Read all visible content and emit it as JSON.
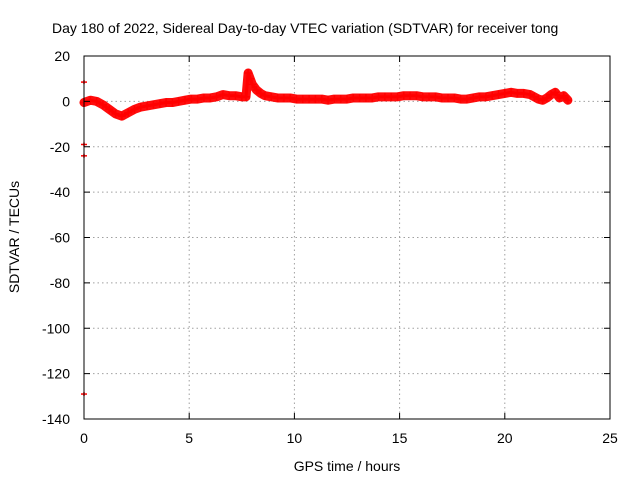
{
  "chart_data": {
    "type": "scatter",
    "title": "Day 180 of 2022, Sidereal Day-to-day VTEC variation (SDTVAR) for receiver tong",
    "xlabel": "GPS time / hours",
    "ylabel": "SDTVAR / TECUs",
    "xlim": [
      0,
      25
    ],
    "ylim": [
      -140,
      20
    ],
    "xticks": [
      0,
      5,
      10,
      15,
      20,
      25
    ],
    "yticks": [
      20,
      0,
      -20,
      -40,
      -60,
      -80,
      -100,
      -120,
      -140
    ],
    "grid": true,
    "series_color": "#ff0000",
    "series": [
      {
        "name": "SDTVAR",
        "x": [
          0.0,
          0.3,
          0.6,
          0.9,
          1.2,
          1.5,
          1.8,
          2.1,
          2.4,
          2.7,
          3.0,
          3.3,
          3.6,
          3.9,
          4.2,
          4.5,
          4.8,
          5.1,
          5.4,
          5.7,
          6.0,
          6.3,
          6.6,
          6.9,
          7.2,
          7.5,
          7.7,
          7.8,
          7.9,
          8.0,
          8.2,
          8.4,
          8.6,
          8.9,
          9.2,
          9.5,
          9.8,
          10.1,
          10.4,
          10.7,
          11.0,
          11.3,
          11.6,
          11.9,
          12.2,
          12.5,
          12.8,
          13.1,
          13.4,
          13.7,
          14.0,
          14.3,
          14.6,
          14.9,
          15.2,
          15.5,
          15.8,
          16.1,
          16.4,
          16.7,
          17.0,
          17.3,
          17.6,
          17.9,
          18.2,
          18.5,
          18.8,
          19.1,
          19.4,
          19.7,
          20.0,
          20.3,
          20.6,
          20.9,
          21.2,
          21.4,
          21.6,
          21.8,
          22.0,
          22.2,
          22.4,
          22.6,
          22.8,
          23.0
        ],
        "y": [
          -0.5,
          0.5,
          0.0,
          -1.5,
          -3.5,
          -5.5,
          -6.5,
          -5.0,
          -3.5,
          -2.5,
          -2.0,
          -1.5,
          -1.0,
          -0.5,
          -0.5,
          0.0,
          0.5,
          1.0,
          1.0,
          1.5,
          1.5,
          2.0,
          3.0,
          2.5,
          2.5,
          2.0,
          2.0,
          12.5,
          10.0,
          7.5,
          5.0,
          3.5,
          2.5,
          2.0,
          1.5,
          1.5,
          1.5,
          1.0,
          1.0,
          1.0,
          1.0,
          1.0,
          0.5,
          1.0,
          1.0,
          1.0,
          1.5,
          1.5,
          1.5,
          1.5,
          2.0,
          2.0,
          2.0,
          2.0,
          2.5,
          2.5,
          2.5,
          2.0,
          2.0,
          2.0,
          1.5,
          1.5,
          1.5,
          1.0,
          1.0,
          1.5,
          2.0,
          2.0,
          2.5,
          3.0,
          3.5,
          4.0,
          3.5,
          3.5,
          3.0,
          2.0,
          1.0,
          0.5,
          1.5,
          3.0,
          4.0,
          1.5,
          2.5,
          0.5
        ]
      }
    ],
    "outliers": {
      "x": [
        0.0,
        0.0,
        0.0,
        0.0
      ],
      "y": [
        8.5,
        -19.0,
        -24.0,
        -129.0
      ]
    }
  }
}
